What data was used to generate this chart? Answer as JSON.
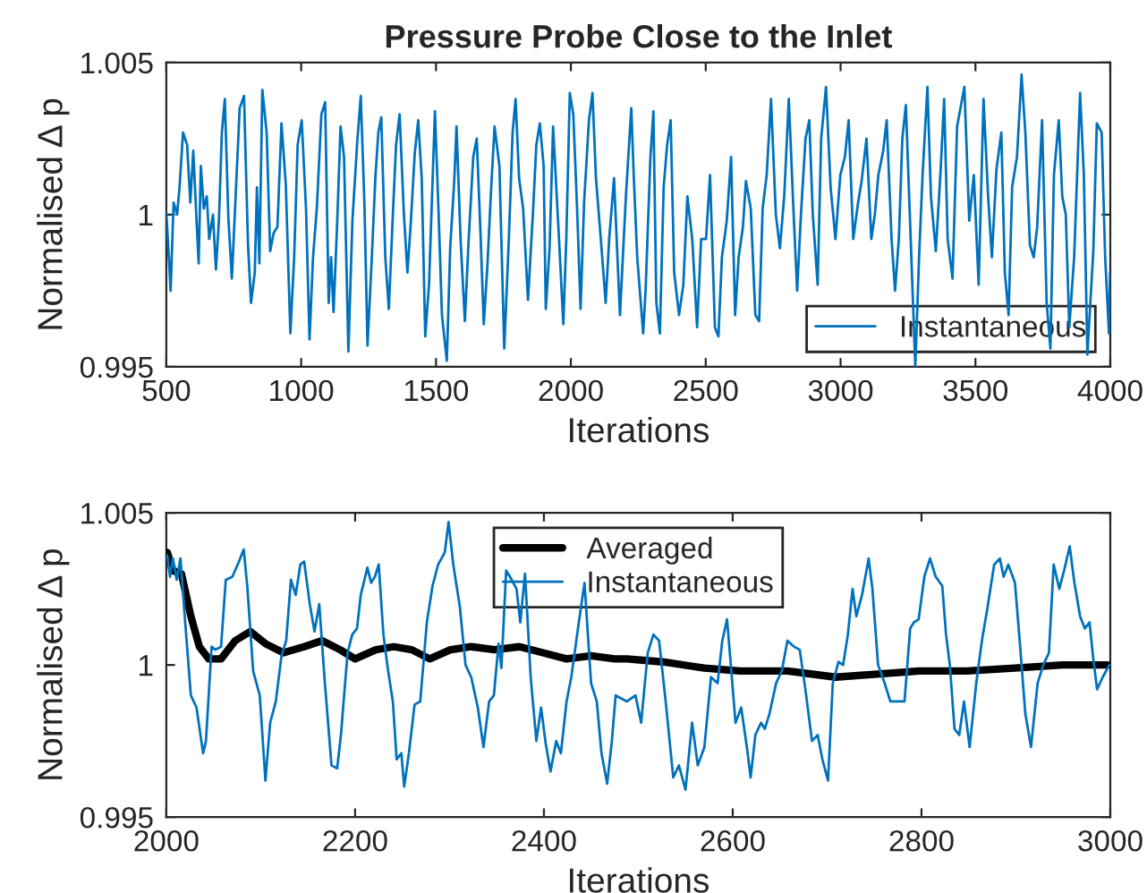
{
  "chart_data": [
    {
      "type": "line",
      "title": "Pressure Probe Close to the Inlet",
      "xlabel": "Iterations",
      "ylabel": "Normalised Δ p",
      "xlim": [
        500,
        4000
      ],
      "xticks": [
        500,
        1000,
        1500,
        2000,
        2500,
        3000,
        3500,
        4000
      ],
      "ylim": [
        0.995,
        1.005
      ],
      "yticks": [
        0.995,
        1,
        1.005
      ],
      "grid": false,
      "legend": "bottom right",
      "series": [
        {
          "name": "Instantaneous",
          "color": "#0072bd",
          "x": [
            500,
            516,
            527,
            540,
            549,
            562,
            577,
            589,
            600,
            611,
            620,
            628,
            639,
            650,
            659,
            673,
            684,
            695,
            706,
            717,
            730,
            743,
            757,
            772,
            788,
            803,
            814,
            828,
            836,
            845,
            856,
            872,
            885,
            898,
            912,
            927,
            943,
            960,
            974,
            987,
            1002,
            1018,
            1031,
            1044,
            1058,
            1075,
            1089,
            1102,
            1111,
            1120,
            1133,
            1146,
            1159,
            1175,
            1190,
            1208,
            1221,
            1235,
            1246,
            1261,
            1275,
            1286,
            1297,
            1312,
            1325,
            1341,
            1352,
            1365,
            1381,
            1394,
            1407,
            1421,
            1434,
            1447,
            1460,
            1474,
            1496,
            1509,
            1522,
            1540,
            1553,
            1567,
            1576,
            1591,
            1607,
            1620,
            1638,
            1651,
            1664,
            1677,
            1691,
            1704,
            1717,
            1735,
            1753,
            1770,
            1784,
            1795,
            1808,
            1823,
            1841,
            1859,
            1872,
            1885,
            1899,
            1907,
            1921,
            1934,
            1956,
            1972,
            1983,
            1996,
            2009,
            2023,
            2036,
            2049,
            2067,
            2080,
            2093,
            2111,
            2129,
            2142,
            2160,
            2182,
            2204,
            2224,
            2233,
            2246,
            2268,
            2277,
            2295,
            2306,
            2317,
            2330,
            2344,
            2357,
            2370,
            2383,
            2401,
            2417,
            2432,
            2450,
            2468,
            2483,
            2501,
            2516,
            2534,
            2547,
            2560,
            2578,
            2594,
            2609,
            2622,
            2638,
            2649,
            2667,
            2684,
            2698,
            2711,
            2726,
            2742,
            2760,
            2775,
            2791,
            2808,
            2826,
            2839,
            2853,
            2870,
            2884,
            2897,
            2915,
            2928,
            2946,
            2963,
            2981,
            2999,
            3016,
            3030,
            3047,
            3065,
            3078,
            3096,
            3114,
            3127,
            3140,
            3158,
            3171,
            3189,
            3202,
            3216,
            3229,
            3242,
            3260,
            3277,
            3291,
            3304,
            3322,
            3335,
            3353,
            3370,
            3384,
            3397,
            3415,
            3432,
            3459,
            3477,
            3494,
            3512,
            3530,
            3547,
            3561,
            3578,
            3596,
            3609,
            3623,
            3636,
            3654,
            3671,
            3685,
            3702,
            3716,
            3729,
            3747,
            3764,
            3778,
            3791,
            3809,
            3822,
            3835,
            3848,
            3866,
            3888,
            3902,
            3915,
            3937,
            3950,
            3968,
            3981,
            3995,
            3999
          ],
          "values": [
            1.0001,
            0.9975,
            1.0004,
            1.0,
            1.0009,
            1.0027,
            1.0023,
            1.0004,
            1.0021,
            1.0,
            0.9984,
            1.0016,
            1.0002,
            1.0006,
            0.9992,
            1.0,
            0.9982,
            0.9998,
            1.0027,
            1.0038,
            0.9999,
            0.9979,
            1.0006,
            1.0035,
            1.0039,
            0.999,
            0.9971,
            0.9981,
            1.0009,
            0.9984,
            1.0041,
            1.0027,
            0.9988,
            0.9994,
            0.9996,
            1.003,
            1.001,
            0.9961,
            0.9986,
            1.0023,
            1.0031,
            1.0002,
            0.9959,
            0.9986,
            1.0002,
            1.0033,
            1.0037,
            0.9971,
            0.9986,
            0.9968,
            0.9996,
            1.0029,
            1.0019,
            0.9955,
            0.9998,
            1.0024,
            1.0039,
            1.0002,
            0.9957,
            0.9984,
            1.0012,
            1.0027,
            1.0032,
            0.9986,
            0.9969,
            1.0002,
            1.0023,
            1.0033,
            1.0,
            0.9981,
            0.9998,
            1.002,
            1.0031,
            1.0012,
            0.996,
            0.9977,
            1.0034,
            1.0002,
            0.9967,
            0.9952,
            0.999,
            1.001,
            1.0029,
            0.9992,
            0.9965,
            0.999,
            1.0019,
            1.0025,
            0.9996,
            0.9964,
            0.9984,
            1.0008,
            1.0029,
            1.0016,
            0.9956,
            0.9992,
            1.0027,
            1.0038,
            1.0012,
            1.0002,
            0.9972,
            1.0,
            1.0023,
            1.003,
            1.0016,
            0.9969,
            0.9989,
            1.0029,
            0.9992,
            0.9964,
            0.9992,
            1.004,
            1.0033,
            1.0002,
            0.9969,
            1.0004,
            1.0031,
            1.004,
            1.0012,
            0.9992,
            0.9971,
            0.9992,
            1.0012,
            0.9967,
            1.0006,
            1.0035,
            1.0013,
            0.9986,
            0.9961,
            0.9975,
            1.0019,
            1.0034,
            0.9971,
            0.9961,
            1.0009,
            1.0023,
            1.0031,
            0.9981,
            0.9967,
            0.9977,
            1.0006,
            0.9992,
            0.9963,
            0.9992,
            0.9992,
            1.0013,
            0.9963,
            0.996,
            0.9986,
            0.9998,
            1.0019,
            0.9967,
            0.9986,
            0.9996,
            1.0011,
            1.0002,
            0.9967,
            0.9965,
            1.0002,
            1.0013,
            1.0038,
            1.0,
            0.9989,
            1.0006,
            1.0038,
            1.0,
            0.9975,
            1.0,
            1.0025,
            1.0031,
            1.0,
            0.9977,
            1.0025,
            1.0042,
            1.0009,
            0.9992,
            1.0013,
            1.0019,
            1.0031,
            0.9992,
            1.0004,
            1.0011,
            1.0025,
            0.9992,
            1.0,
            1.0013,
            1.0021,
            1.0031,
            0.9992,
            0.9975,
            0.9992,
            1.0025,
            1.0036,
            0.9992,
            0.995,
            0.9986,
            1.0013,
            1.0042,
            1.0006,
            0.9988,
            1.0013,
            1.0038,
            0.9992,
            0.9979,
            1.0029,
            1.0042,
            0.9998,
            1.0013,
            0.9977,
            1.0038,
            1.0006,
            0.9986,
            1.0015,
            1.0027,
            0.9981,
            0.9967,
            1.0009,
            1.0019,
            1.0046,
            1.0027,
            0.999,
            0.9986,
            0.9996,
            1.0031,
            0.9971,
            0.9956,
            1.0013,
            1.0031,
            1.0006,
            1.0,
            0.9963,
            0.9986,
            1.004,
            1.0013,
            0.9954,
            0.9988,
            1.003,
            1.0027,
            0.9986,
            0.9961,
            0.9981
          ]
        }
      ]
    },
    {
      "type": "line",
      "xlabel": "Iterations",
      "ylabel": "Normalised Δ p",
      "xlim": [
        2000,
        3000
      ],
      "xticks": [
        2000,
        2200,
        2400,
        2600,
        2800,
        3000
      ],
      "ylim": [
        0.995,
        1.005
      ],
      "yticks": [
        0.995,
        1,
        1.005
      ],
      "grid": false,
      "legend": "top",
      "series": [
        {
          "name": "Averaged",
          "color": "#000000",
          "x": [
            2001,
            2007,
            2016,
            2026,
            2035,
            2045,
            2058,
            2073,
            2089,
            2105,
            2124,
            2146,
            2165,
            2184,
            2200,
            2222,
            2241,
            2260,
            2279,
            2301,
            2323,
            2348,
            2374,
            2399,
            2424,
            2450,
            2475,
            2488,
            2526,
            2570,
            2608,
            2658,
            2709,
            2753,
            2797,
            2848,
            2899,
            2949,
            2997
          ],
          "values": [
            1.0037,
            1.0031,
            1.003,
            1.0016,
            1.0006,
            1.0002,
            1.0002,
            1.0008,
            1.0011,
            1.0007,
            1.0004,
            1.0006,
            1.0008,
            1.0005,
            1.0002,
            1.0005,
            1.0006,
            1.0005,
            1.0002,
            1.0005,
            1.0006,
            1.0005,
            1.0006,
            1.0004,
            1.0002,
            1.0003,
            1.0002,
            1.0002,
            1.0001,
            0.9999,
            0.9998,
            0.9998,
            0.9996,
            0.9997,
            0.9998,
            0.9998,
            0.9999,
            1.0,
            1.0
          ]
        },
        {
          "name": "Instantaneous",
          "color": "#0072bd",
          "x": [
            2001,
            2004,
            2007,
            2011,
            2015,
            2020,
            2026,
            2032,
            2039,
            2042,
            2048,
            2052,
            2058,
            2063,
            2070,
            2077,
            2082,
            2086,
            2092,
            2099,
            2105,
            2110,
            2116,
            2122,
            2127,
            2132,
            2137,
            2142,
            2146,
            2152,
            2157,
            2162,
            2168,
            2175,
            2181,
            2185,
            2192,
            2197,
            2202,
            2206,
            2213,
            2217,
            2221,
            2225,
            2230,
            2235,
            2240,
            2244,
            2249,
            2252,
            2257,
            2263,
            2269,
            2276,
            2282,
            2288,
            2295,
            2299,
            2304,
            2311,
            2317,
            2323,
            2330,
            2336,
            2342,
            2347,
            2352,
            2355,
            2360,
            2364,
            2371,
            2375,
            2380,
            2386,
            2392,
            2397,
            2402,
            2407,
            2413,
            2418,
            2424,
            2429,
            2437,
            2443,
            2450,
            2456,
            2461,
            2467,
            2472,
            2476,
            2488,
            2497,
            2503,
            2510,
            2516,
            2522,
            2529,
            2537,
            2543,
            2550,
            2557,
            2563,
            2570,
            2577,
            2584,
            2589,
            2594,
            2598,
            2603,
            2609,
            2615,
            2619,
            2624,
            2630,
            2634,
            2639,
            2646,
            2652,
            2658,
            2665,
            2671,
            2677,
            2684,
            2690,
            2695,
            2701,
            2706,
            2712,
            2717,
            2722,
            2727,
            2731,
            2737,
            2744,
            2748,
            2754,
            2761,
            2767,
            2772,
            2782,
            2788,
            2792,
            2797,
            2803,
            2809,
            2815,
            2822,
            2826,
            2830,
            2835,
            2840,
            2845,
            2851,
            2858,
            2864,
            2870,
            2877,
            2883,
            2887,
            2892,
            2899,
            2904,
            2910,
            2916,
            2923,
            2929,
            2935,
            2940,
            2946,
            2951,
            2957,
            2962,
            2968,
            2973,
            2978,
            2982,
            2986,
            2992,
            2999
          ],
          "values": [
            1.0036,
            1.0029,
            1.0035,
            1.0028,
            1.0035,
            1.0014,
            0.999,
            0.9986,
            0.9971,
            0.9975,
            1.0006,
            1.0005,
            1.0006,
            1.0028,
            1.0029,
            1.0034,
            1.0038,
            1.0025,
            0.9998,
            0.999,
            0.9962,
            0.9981,
            0.9988,
            1.0003,
            1.0008,
            1.0028,
            1.0023,
            1.0033,
            1.0034,
            1.002,
            1.0011,
            1.002,
            0.9994,
            0.9967,
            0.9966,
            0.9977,
            1.0004,
            1.001,
            1.0012,
            1.0023,
            1.0032,
            1.0027,
            1.0029,
            1.0033,
            1.001,
            0.9998,
            0.9988,
            0.9969,
            0.9971,
            0.996,
            0.9971,
            0.9987,
            0.9988,
            1.0014,
            1.0026,
            1.0033,
            1.0037,
            1.0047,
            1.0033,
            1.0019,
            1.0,
            0.9996,
            0.9986,
            0.9973,
            0.9988,
            0.999,
            1.0007,
            0.9999,
            1.0031,
            1.0029,
            1.0025,
            1.0014,
            1.003,
            0.9996,
            0.9975,
            0.9986,
            0.9974,
            0.9965,
            0.9975,
            0.9971,
            0.9988,
            0.9996,
            1.0014,
            1.0027,
            0.9994,
            0.9988,
            0.9971,
            0.9961,
            0.9975,
            0.999,
            0.9988,
            0.999,
            0.9981,
            1.0004,
            1.001,
            1.0008,
            0.9988,
            0.9963,
            0.9967,
            0.9959,
            0.9981,
            0.9967,
            0.9973,
            0.9996,
            0.9994,
            1.0008,
            1.0015,
            1.0,
            0.9981,
            0.9986,
            0.9973,
            0.9963,
            0.9977,
            0.9981,
            0.9979,
            0.9984,
            0.9994,
            0.9998,
            1.0008,
            1.0006,
            1.0005,
            0.9992,
            0.9975,
            0.9977,
            0.9969,
            0.9962,
            0.9994,
            1.0001,
            1.0,
            1.001,
            1.0025,
            1.0016,
            1.0023,
            1.0035,
            1.0025,
            1.0,
            0.9994,
            0.9988,
            0.9988,
            0.9988,
            1.0012,
            1.0014,
            1.0015,
            1.0029,
            1.0035,
            1.0029,
            1.0026,
            1.001,
            1.0,
            0.9979,
            0.9977,
            0.9988,
            0.9973,
            0.9994,
            1.0008,
            1.0019,
            1.0033,
            1.0035,
            1.0029,
            1.0033,
            1.0027,
            1.0008,
            0.9984,
            0.9973,
            0.9994,
            1.0,
            1.0004,
            1.0033,
            1.0025,
            1.0031,
            1.0039,
            1.0027,
            1.0016,
            1.0012,
            1.0014,
            1.0002,
            0.9992,
            0.9996,
            1.0
          ]
        }
      ]
    }
  ]
}
